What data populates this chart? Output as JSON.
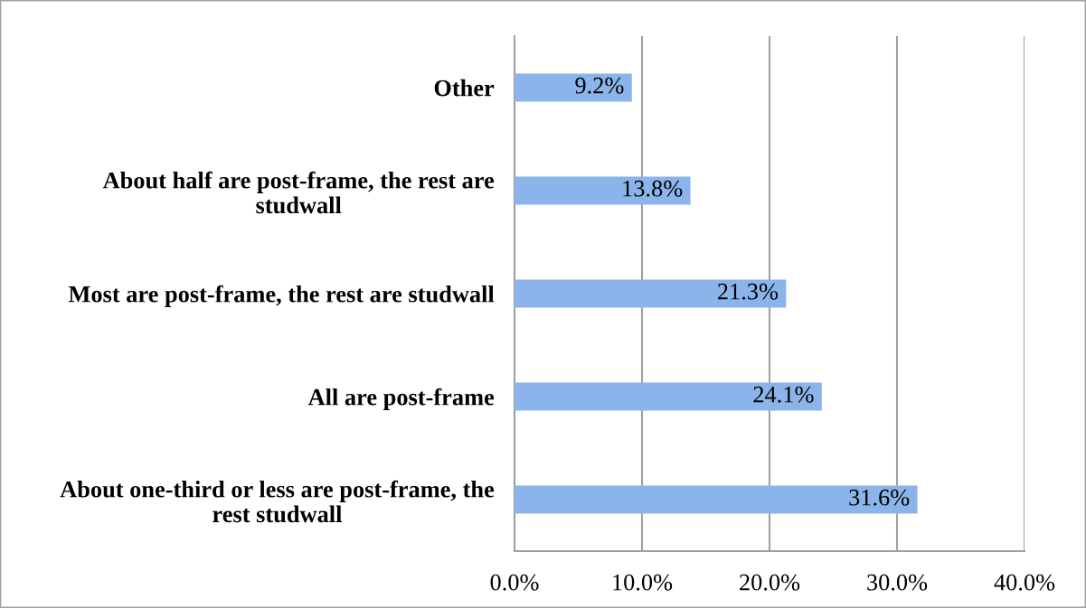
{
  "chart_data": {
    "type": "bar",
    "orientation": "horizontal",
    "categories": [
      "Other",
      "About half are post-frame, the rest are studwall",
      "Most are post-frame, the rest are studwall",
      "All are post-frame",
      "About one-third or less are post-frame, the rest studwall"
    ],
    "values": [
      9.2,
      13.8,
      21.3,
      24.1,
      31.6
    ],
    "color": "#8ab4ea",
    "value_labels": [
      "9.2%",
      "13.8%",
      "21.3%",
      "24.1%",
      "31.6%"
    ],
    "xlim": [
      0,
      40
    ],
    "xticks": [
      {
        "value": 0,
        "label": "0.0%"
      },
      {
        "value": 10,
        "label": "10.0%"
      },
      {
        "value": 20,
        "label": "20.0%"
      },
      {
        "value": 30,
        "label": "30.0%"
      },
      {
        "value": 40,
        "label": "40.0%"
      }
    ],
    "grid": "x",
    "legend": false
  }
}
